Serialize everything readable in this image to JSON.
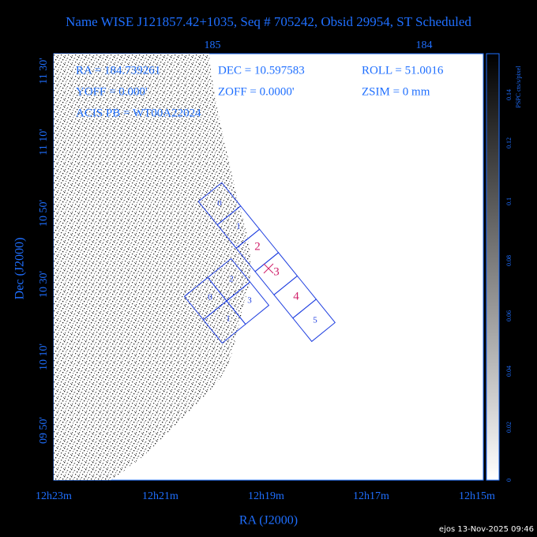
{
  "header": {
    "title": "Name WISE J121857.42+1035, Seq # 705242, Obsid 29954, ST Scheduled"
  },
  "axes": {
    "top_ticks": [
      "185",
      "184"
    ],
    "left_ticks": [
      "11 30'",
      "11 10'",
      "10 50'",
      "10 30'",
      "10 10'",
      "09 50'"
    ],
    "bottom_ticks": [
      "12h23m",
      "12h21m",
      "12h19m",
      "12h17m",
      "12h15m"
    ],
    "x_label": "RA (J2000)",
    "y_label": "Dec (J2000)"
  },
  "info": {
    "ra": "RA = 184.739261",
    "dec": "DEC = 10.597583",
    "roll": "ROLL = 51.0016",
    "yoff": "YOFF =   0.000'",
    "zoff": "ZOFF =  0.0000'",
    "zsim": "ZSIM = 0 mm",
    "acis": "ACIS PB = WT00A22024"
  },
  "chips": {
    "s_array": [
      "0",
      "1",
      "2",
      "3",
      "4",
      "5"
    ],
    "i_array": [
      "0",
      "1",
      "2",
      "3"
    ]
  },
  "colorbar": {
    "label": "PSPC cts/s/pixel",
    "ticks": [
      "0",
      "0.02",
      "0.04",
      "0.06",
      "0.08",
      "0.1",
      "0.12",
      "0.14"
    ]
  },
  "footer": {
    "stamp": "ejos 13-Nov-2025 09:46"
  }
}
